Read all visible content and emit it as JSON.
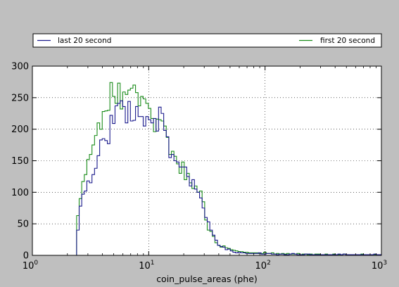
{
  "chart_data": {
    "type": "histogram",
    "xscale": "log",
    "xlim": [
      1,
      1000
    ],
    "ylim": [
      0,
      300
    ],
    "xlabel": "coin_pulse_areas (phe)",
    "ylabel": "",
    "grid": true,
    "legend_position": "top, above plot, spanning width",
    "x_ticks": [
      {
        "label": "10",
        "exp": "0",
        "value": 1
      },
      {
        "label": "10",
        "exp": "1",
        "value": 10
      },
      {
        "label": "10",
        "exp": "2",
        "value": 100
      },
      {
        "label": "10",
        "exp": "3",
        "value": 1000
      }
    ],
    "y_ticks": [
      {
        "label": "0",
        "value": 0
      },
      {
        "label": "50",
        "value": 50
      },
      {
        "label": "100",
        "value": 100
      },
      {
        "label": "150",
        "value": 150
      },
      {
        "label": "200",
        "value": 200
      },
      {
        "label": "250",
        "value": 250
      },
      {
        "label": "300",
        "value": 300
      }
    ],
    "bin_start": 2.4,
    "bin_factor": 1.052,
    "series": [
      {
        "name": "last 20 second",
        "color": "#1a1a8c",
        "counts": [
          40,
          78,
          97,
          102,
          118,
          115,
          128,
          138,
          158,
          183,
          185,
          182,
          177,
          222,
          209,
          237,
          241,
          245,
          236,
          210,
          244,
          213,
          214,
          236,
          220,
          220,
          205,
          220,
          215,
          210,
          217,
          197,
          235,
          225,
          198,
          188,
          155,
          160,
          150,
          148,
          140,
          140,
          140,
          125,
          110,
          120,
          105,
          100,
          91,
          75,
          60,
          53,
          40,
          32,
          24,
          16,
          14,
          13,
          9,
          10,
          7,
          5,
          4,
          5,
          4,
          4,
          3,
          3,
          3,
          3,
          3,
          4,
          2,
          2,
          3,
          3,
          2,
          2,
          1,
          2,
          2,
          1,
          1,
          2,
          3,
          2,
          1,
          1,
          1,
          2,
          2,
          1,
          1,
          1,
          1,
          1,
          1,
          1,
          1,
          1,
          1,
          1,
          2,
          1,
          2,
          1,
          1,
          1,
          1,
          1,
          1,
          1,
          1,
          1,
          1,
          1,
          2,
          1,
          1,
          1,
          1,
          1,
          1,
          1,
          1,
          1,
          1,
          1,
          1,
          1,
          1,
          1,
          1,
          1,
          1,
          1,
          1,
          1,
          1,
          1,
          1,
          1,
          2
        ]
      },
      {
        "name": "first 20 second",
        "color": "#1a8c1a",
        "counts": [
          63,
          90,
          117,
          128,
          152,
          160,
          175,
          190,
          210,
          200,
          228,
          229,
          230,
          274,
          252,
          241,
          273,
          232,
          259,
          255,
          262,
          265,
          270,
          258,
          237,
          252,
          248,
          241,
          233,
          217,
          196,
          216,
          215,
          213,
          205,
          187,
          160,
          165,
          157,
          145,
          130,
          148,
          120,
          130,
          115,
          106,
          110,
          100,
          102,
          85,
          56,
          40,
          38,
          30,
          20,
          16,
          13,
          15,
          12,
          11,
          9,
          8,
          7,
          6,
          6,
          5,
          5,
          4,
          4,
          4,
          4,
          3,
          3,
          5,
          3,
          3,
          4,
          2,
          3,
          2,
          3,
          2,
          3,
          2,
          2,
          2,
          3,
          1,
          2,
          2,
          1,
          2,
          1,
          2,
          2,
          1,
          1,
          2,
          1,
          1,
          2,
          1,
          1,
          1,
          2,
          1,
          1,
          1,
          1,
          1,
          1,
          2,
          1,
          1,
          1,
          1,
          1,
          1,
          1,
          1,
          1,
          1,
          1,
          1,
          1,
          1,
          1,
          1,
          1,
          1,
          1,
          1,
          1,
          1,
          1,
          1,
          1,
          1,
          1,
          1,
          1,
          1,
          1,
          3
        ]
      }
    ]
  }
}
